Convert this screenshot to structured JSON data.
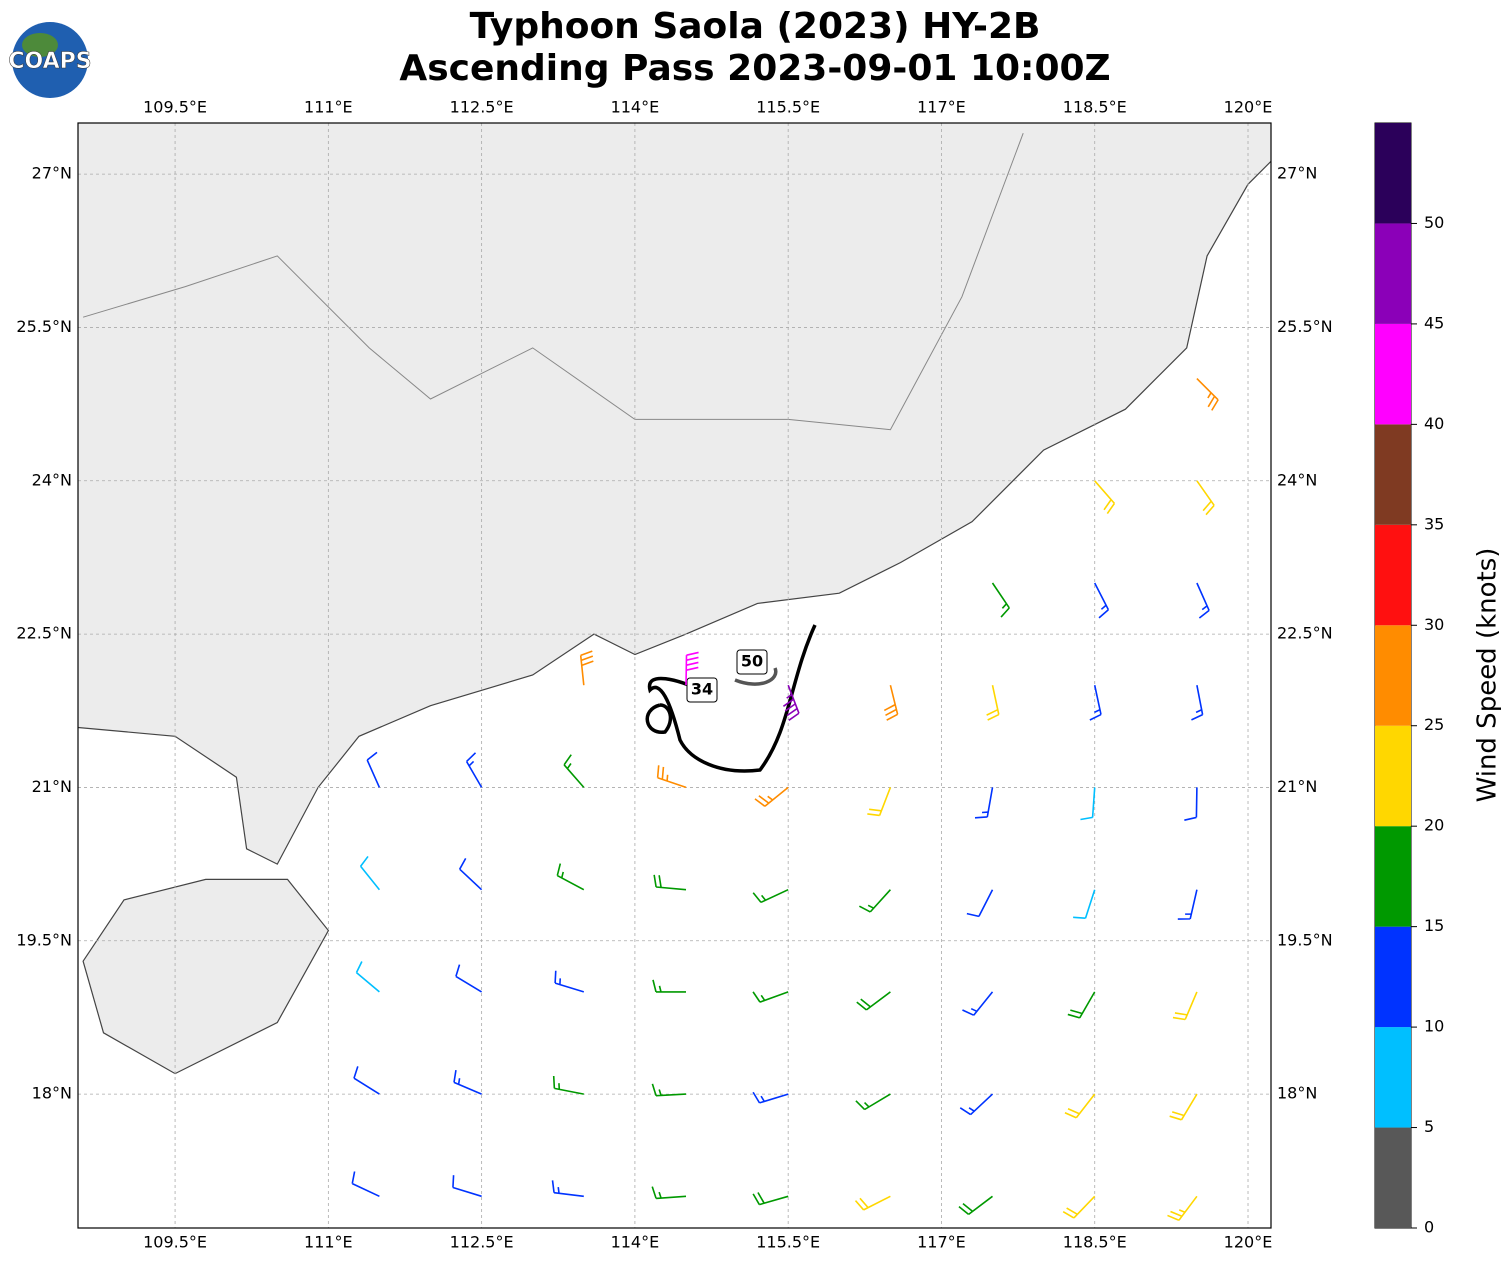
{
  "chart_data": {
    "type": "barbs",
    "title": [
      "Typhoon Saola (2023) HY-2B",
      "Ascending Pass 2023-09-01 10:00Z"
    ],
    "logo_text": "COAPS",
    "xlim": [
      108.55,
      120.225
    ],
    "ylim": [
      16.69,
      27.5
    ],
    "xticks": [
      {
        "value": 109.5,
        "label": "109.5°E"
      },
      {
        "value": 111,
        "label": "111°E"
      },
      {
        "value": 112.5,
        "label": "112.5°E"
      },
      {
        "value": 114,
        "label": "114°E"
      },
      {
        "value": 115.5,
        "label": "115.5°E"
      },
      {
        "value": 117,
        "label": "117°E"
      },
      {
        "value": 118.5,
        "label": "118.5°E"
      },
      {
        "value": 120,
        "label": "120°E"
      }
    ],
    "yticks": [
      {
        "value": 18,
        "label": "18°N"
      },
      {
        "value": 19.5,
        "label": "19.5°N"
      },
      {
        "value": 21,
        "label": "21°N"
      },
      {
        "value": 22.5,
        "label": "22.5°N"
      },
      {
        "value": 24,
        "label": "24°N"
      },
      {
        "value": 25.5,
        "label": "25.5°N"
      },
      {
        "value": 27,
        "label": "27°N"
      }
    ],
    "grid": true,
    "contour_levels": [
      34,
      50
    ],
    "colorbar": {
      "label": "Wind Speed (knots)",
      "lim": [
        0,
        55
      ],
      "bounds": [
        0,
        5,
        10,
        15,
        20,
        25,
        30,
        35,
        40,
        45,
        50,
        55
      ],
      "colors": [
        "#585858",
        "#00bfff",
        "#0033ff",
        "#009900",
        "#ffd700",
        "#ff8c00",
        "#ff1010",
        "#7f3a22",
        "#ff00ff",
        "#8b00b8",
        "#2b005a"
      ],
      "ticks": [
        0,
        5,
        10,
        15,
        20,
        25,
        30,
        35,
        40,
        45,
        50
      ]
    },
    "barbs": [
      [
        111.5,
        17,
        12,
        -25
      ],
      [
        112.5,
        17,
        12,
        -17
      ],
      [
        113.5,
        17,
        13,
        -7
      ],
      [
        114.5,
        17,
        17,
        4
      ],
      [
        115.5,
        17,
        18,
        16
      ],
      [
        116.5,
        17,
        21,
        27
      ],
      [
        117.5,
        17,
        19,
        37
      ],
      [
        118.5,
        17,
        22,
        46
      ],
      [
        119.5,
        17,
        23,
        53
      ],
      [
        111.5,
        18,
        12,
        -32
      ],
      [
        112.5,
        18,
        13,
        -23
      ],
      [
        113.5,
        18,
        17,
        -11
      ],
      [
        114.5,
        18,
        17,
        3
      ],
      [
        115.5,
        18,
        14,
        17
      ],
      [
        116.5,
        18,
        17,
        31
      ],
      [
        117.5,
        18,
        13,
        43
      ],
      [
        118.5,
        18,
        21,
        52
      ],
      [
        119.5,
        18,
        22,
        59
      ],
      [
        111.5,
        19,
        8,
        -40
      ],
      [
        112.5,
        19,
        12,
        -31
      ],
      [
        113.5,
        19,
        14,
        -17
      ],
      [
        114.5,
        19,
        17,
        0
      ],
      [
        115.5,
        19,
        17,
        20
      ],
      [
        116.5,
        19,
        18,
        37
      ],
      [
        117.5,
        19,
        13,
        51
      ],
      [
        118.5,
        19,
        18,
        60
      ],
      [
        119.5,
        19,
        20,
        67
      ],
      [
        111.5,
        20,
        9,
        -51
      ],
      [
        112.5,
        20,
        12,
        -43
      ],
      [
        113.5,
        20,
        17,
        -28
      ],
      [
        114.5,
        20,
        18,
        -5
      ],
      [
        115.5,
        20,
        16,
        25
      ],
      [
        116.5,
        20,
        17,
        48
      ],
      [
        117.5,
        20,
        12,
        63
      ],
      [
        118.5,
        20,
        8,
        72
      ],
      [
        119.5,
        20,
        14,
        77
      ],
      [
        111.5,
        21,
        12,
        -66
      ],
      [
        112.5,
        21,
        13,
        -60
      ],
      [
        113.5,
        21,
        17,
        -49
      ],
      [
        114.5,
        21,
        25,
        -19
      ],
      [
        115.5,
        21,
        27,
        39
      ],
      [
        116.5,
        21,
        22,
        69
      ],
      [
        117.5,
        21,
        13,
        80
      ],
      [
        118.5,
        21,
        8,
        86
      ],
      [
        119.5,
        21,
        10,
        89
      ],
      [
        113.5,
        22,
        28,
        -84
      ],
      [
        114.5,
        22,
        42,
        -91
      ],
      [
        115.5,
        22,
        45,
        111
      ],
      [
        116.5,
        22,
        28,
        104
      ],
      [
        117.5,
        22,
        20,
        102
      ],
      [
        118.5,
        22,
        14,
        102
      ],
      [
        119.5,
        22,
        13,
        101
      ],
      [
        117.5,
        23,
        17,
        124
      ],
      [
        118.5,
        23,
        14,
        117
      ],
      [
        119.5,
        23,
        14,
        114
      ],
      [
        118.5,
        24,
        20,
        131
      ],
      [
        119.5,
        24,
        22,
        125
      ],
      [
        119.5,
        25,
        27,
        135
      ]
    ]
  }
}
